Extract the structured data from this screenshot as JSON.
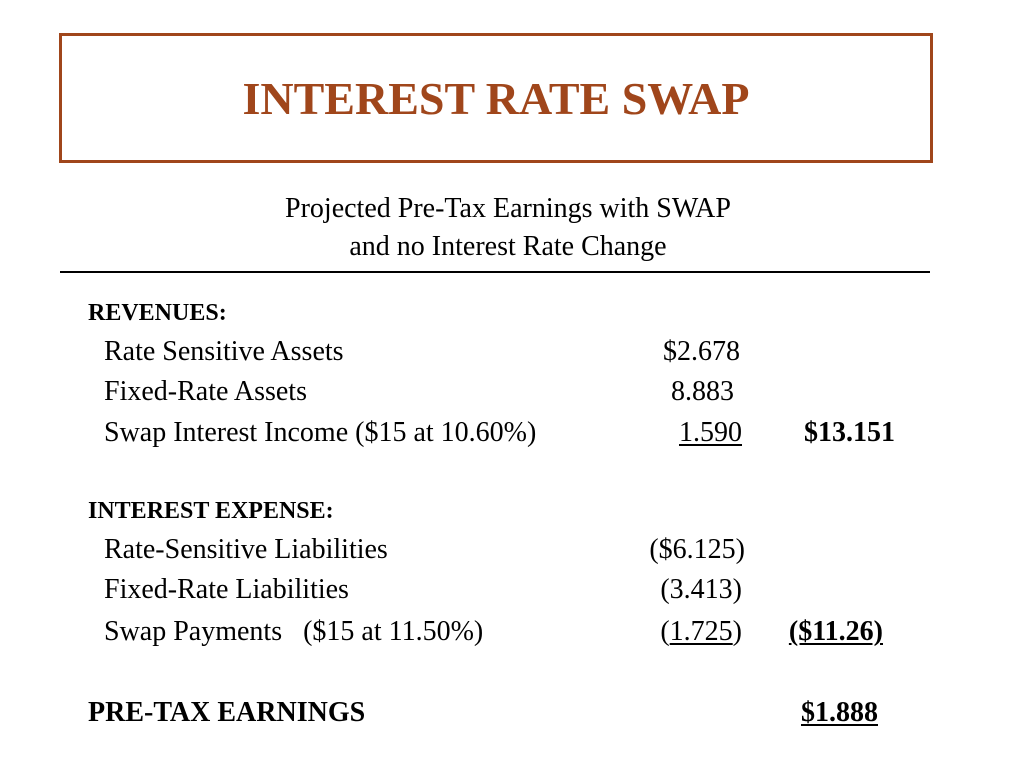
{
  "title": "INTEREST RATE SWAP",
  "subtitle": {
    "line1": "Projected Pre-Tax Earnings with SWAP",
    "line2": "and no Interest Rate Change"
  },
  "revenues": {
    "heading": "REVENUES:",
    "items": [
      {
        "label": "Rate Sensitive Assets",
        "amount": "$2.678"
      },
      {
        "label": "Fixed-Rate Assets",
        "amount": "8.883"
      },
      {
        "label": "Swap Interest Income ($15 at 10.60%)",
        "amount": "1.590"
      }
    ],
    "total": "$13.151"
  },
  "interest_expense": {
    "heading": "INTEREST EXPENSE:",
    "items": [
      {
        "label": "Rate-Sensitive Liabilities",
        "amount": "($6.125)"
      },
      {
        "label": "Fixed-Rate Liabilities",
        "amount": "(3.413)"
      },
      {
        "label": "Swap Payments   ($15 at 11.50%)",
        "amount_open": "(",
        "amount_value": "1.725",
        "amount_close": ")"
      }
    ],
    "total": "($11.26)"
  },
  "pretax": {
    "label": "PRE-TAX EARNINGS",
    "total": "$1.888"
  },
  "colors": {
    "title_accent": "#a0461b",
    "text": "#000000",
    "background": "#ffffff"
  }
}
